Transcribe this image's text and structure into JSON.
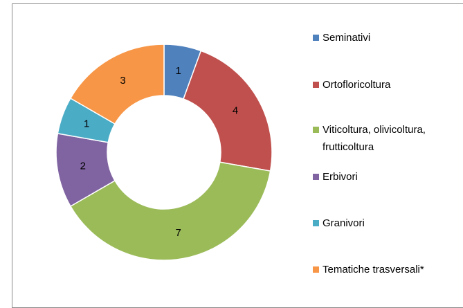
{
  "chart_data": {
    "type": "donut",
    "categories": [
      "Seminativi",
      "Ortofloricoltura",
      "Viticoltura, olivicoltura, frutticoltura",
      "Erbivori",
      "Granivori",
      "Tematiche trasversali*"
    ],
    "values": [
      1,
      4,
      7,
      2,
      1,
      3
    ],
    "colors": [
      "#4f81bd",
      "#c0504d",
      "#9bbb59",
      "#8064a2",
      "#4bacc6",
      "#f79646"
    ],
    "legend": "right"
  }
}
